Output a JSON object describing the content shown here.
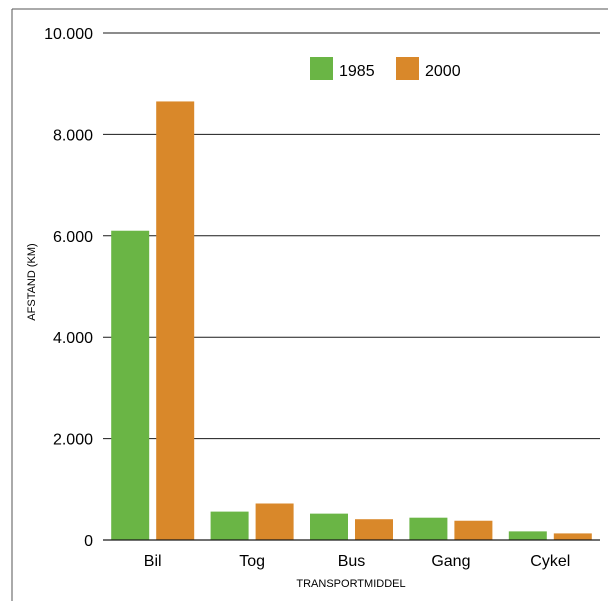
{
  "chart_data": {
    "type": "bar",
    "title": "",
    "xlabel": "TRANSPORTMIDDEL",
    "ylabel": "AFSTAND (KM)",
    "categories": [
      "Bil",
      "Tog",
      "Bus",
      "Gang",
      "Cykel"
    ],
    "series": [
      {
        "name": "1985",
        "color": "#6ab545",
        "values": [
          6100,
          560,
          520,
          440,
          170
        ]
      },
      {
        "name": "2000",
        "color": "#d9882a",
        "values": [
          8650,
          720,
          410,
          380,
          130
        ]
      }
    ],
    "ylim": [
      0,
      10000
    ],
    "yticks": [
      0,
      2000,
      4000,
      6000,
      8000,
      10000
    ],
    "ytick_labels": [
      "0",
      "2.000",
      "4.000",
      "6.000",
      "8.000",
      "10.000"
    ],
    "grid": true,
    "legend_position": "top-right"
  }
}
